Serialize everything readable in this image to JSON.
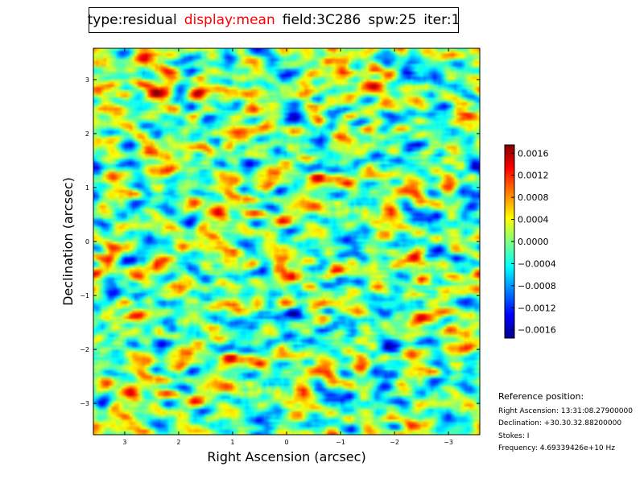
{
  "title": {
    "type": "type:residual",
    "display": "display:mean",
    "field": "field:3C286",
    "spw": "spw:25",
    "iter": "iter:1",
    "display_color": "#ff0000"
  },
  "chart_data": {
    "type": "heatmap",
    "xlabel": "Right Ascension (arcsec)",
    "ylabel": "Declination (arcsec)",
    "xlim": [
      3.58,
      -3.58
    ],
    "ylim": [
      -3.58,
      3.58
    ],
    "xticks": [
      3,
      2,
      1,
      0,
      -1,
      -2,
      -3
    ],
    "xtick_labels": [
      "3",
      "2",
      "1",
      "0",
      "−1",
      "−2",
      "−3"
    ],
    "yticks": [
      3,
      2,
      1,
      0,
      -1,
      -2,
      -3
    ],
    "ytick_labels": [
      "3",
      "2",
      "1",
      "0",
      "−1",
      "−2",
      "−3"
    ],
    "colormap": "jet",
    "colorbar": {
      "range": [
        -0.00175,
        0.00175
      ],
      "ticks": [
        0.0016,
        0.0012,
        0.0008,
        0.0004,
        0.0,
        -0.0004,
        -0.0008,
        -0.0012,
        -0.0016
      ],
      "tick_labels": [
        "0.0016",
        "0.0012",
        "0.0008",
        "0.0004",
        "0.0000",
        "−0.0004",
        "−0.0008",
        "−0.0012",
        "−0.0016"
      ]
    },
    "description_values": "residual image noise field, roughly symmetric around 0"
  },
  "reference": {
    "heading": "Reference position:",
    "ra": "Right Ascension: 13:31:08.27900000",
    "dec": "Declination: +30.30.32.88200000",
    "stokes": "Stokes: I",
    "frequency": "Frequency: 4.69339426e+10 Hz"
  }
}
